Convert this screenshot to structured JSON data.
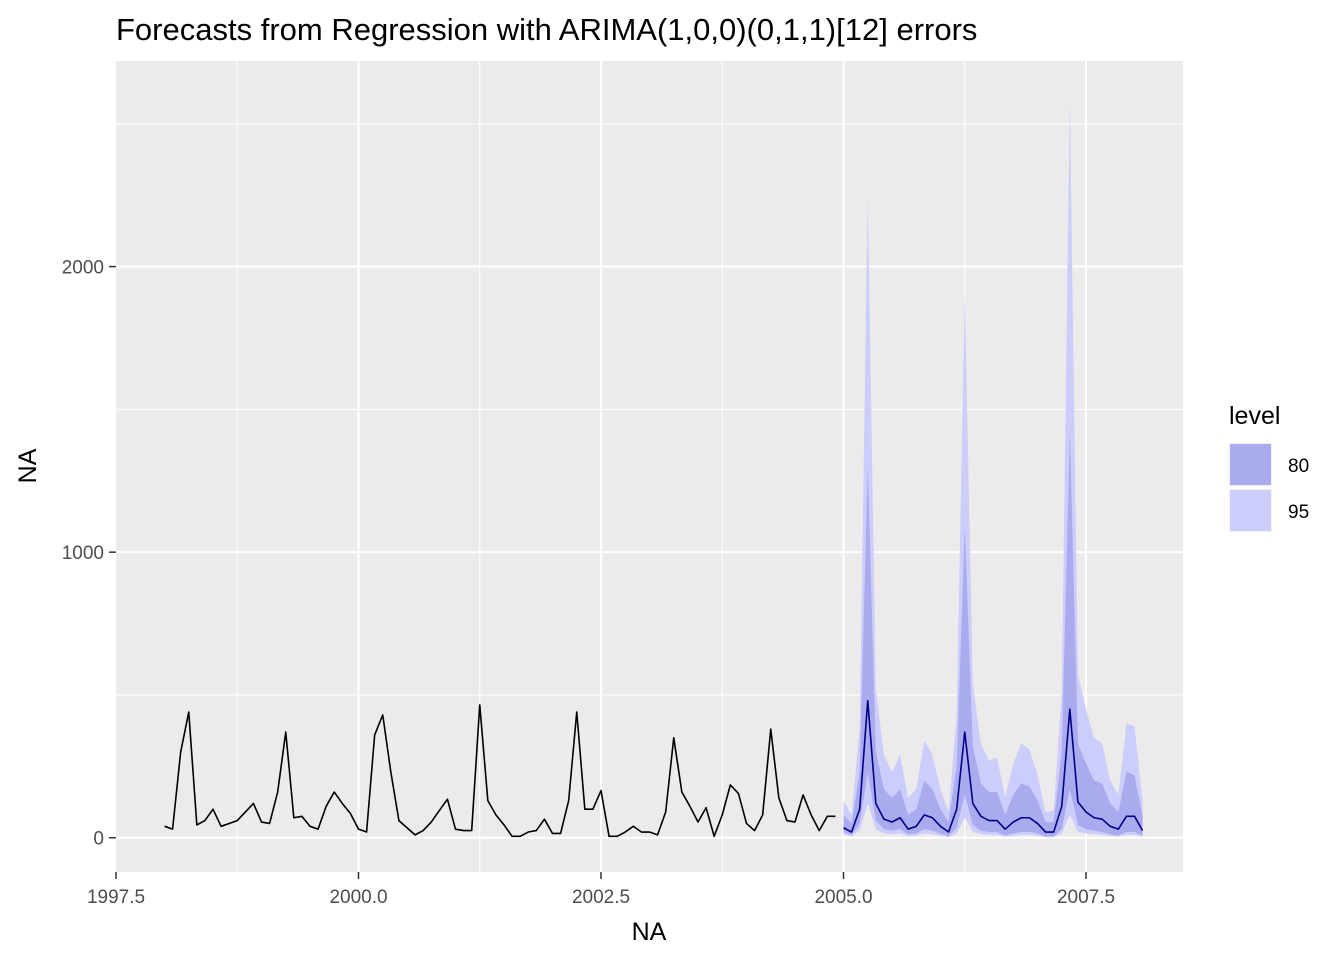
{
  "chart_data": {
    "type": "line",
    "title": "Forecasts from Regression with ARIMA(1,0,0)(0,1,1)[12] errors",
    "xlabel": "NA",
    "ylabel": "NA",
    "xlim": [
      1997.5,
      2008.5
    ],
    "ylim": [
      -120,
      2720
    ],
    "x_ticks": [
      1997.5,
      2000.0,
      2002.5,
      2005.0,
      2007.5
    ],
    "x_tick_labels": [
      "1997.5",
      "2000.0",
      "2002.5",
      "2005.0",
      "2007.5"
    ],
    "y_ticks": [
      0,
      1000,
      2000
    ],
    "y_tick_labels": [
      "0",
      "1000",
      "2000"
    ],
    "grid": true,
    "legend": {
      "title": "level",
      "placement": "right",
      "entries": [
        {
          "label": "80",
          "color": "#aaaaee"
        },
        {
          "label": "95",
          "color": "#cccdfb"
        }
      ]
    },
    "series": [
      {
        "role": "observed",
        "color": "#000000",
        "x_start": 1998.0,
        "step": 0.08333333,
        "values": [
          40,
          30,
          300,
          440,
          45,
          60,
          100,
          40,
          50,
          60,
          90,
          120,
          55,
          50,
          160,
          370,
          70,
          75,
          40,
          30,
          110,
          160,
          120,
          85,
          30,
          20,
          360,
          430,
          230,
          60,
          35,
          10,
          25,
          55,
          95,
          135,
          30,
          25,
          25,
          465,
          130,
          80,
          45,
          5,
          5,
          20,
          25,
          65,
          15,
          15,
          130,
          440,
          100,
          100,
          165,
          5,
          5,
          20,
          40,
          20,
          20,
          10,
          90,
          350,
          160,
          110,
          55,
          105,
          5,
          80,
          185,
          155,
          50,
          25,
          80,
          380,
          140,
          60,
          55,
          150,
          80,
          25,
          75,
          75
        ]
      },
      {
        "role": "forecast",
        "color": "#00008b",
        "x_start": 2005.0,
        "step": 0.08333333,
        "values": [
          35,
          20,
          100,
          480,
          120,
          65,
          55,
          70,
          30,
          40,
          80,
          70,
          40,
          20,
          100,
          370,
          120,
          75,
          60,
          60,
          30,
          55,
          70,
          70,
          50,
          20,
          20,
          110,
          450,
          125,
          90,
          70,
          65,
          40,
          30,
          75,
          75,
          25
        ],
        "lo80": [
          20,
          10,
          50,
          230,
          60,
          30,
          25,
          30,
          12,
          15,
          30,
          25,
          15,
          5,
          35,
          150,
          45,
          25,
          20,
          20,
          8,
          15,
          20,
          20,
          15,
          5,
          5,
          30,
          170,
          45,
          30,
          25,
          20,
          12,
          8,
          20,
          20,
          8
        ],
        "hi80": [
          80,
          50,
          230,
          1300,
          300,
          170,
          140,
          170,
          80,
          100,
          200,
          170,
          100,
          55,
          250,
          1090,
          320,
          190,
          160,
          160,
          80,
          150,
          190,
          180,
          130,
          55,
          55,
          300,
          1420,
          330,
          260,
          200,
          190,
          120,
          90,
          230,
          220,
          75
        ],
        "lo95": [
          10,
          5,
          25,
          120,
          30,
          15,
          12,
          15,
          5,
          7,
          15,
          12,
          7,
          2,
          15,
          70,
          20,
          12,
          10,
          10,
          4,
          7,
          10,
          10,
          7,
          2,
          2,
          15,
          80,
          20,
          15,
          12,
          10,
          6,
          4,
          10,
          10,
          4
        ],
        "hi95": [
          130,
          80,
          380,
          2240,
          520,
          290,
          230,
          290,
          140,
          170,
          340,
          290,
          170,
          90,
          430,
          1900,
          540,
          330,
          270,
          280,
          140,
          260,
          330,
          310,
          220,
          90,
          95,
          510,
          2580,
          570,
          450,
          350,
          330,
          200,
          150,
          400,
          390,
          130
        ]
      }
    ]
  }
}
